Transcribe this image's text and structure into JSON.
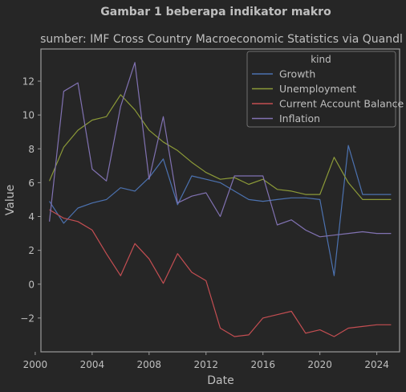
{
  "chart_data": {
    "type": "line",
    "suptitle": "Gambar 1 beberapa indikator makro",
    "title": "sumber: IMF Cross Country Macroeconomic Statistics via Quandl",
    "xlabel": "Date",
    "ylabel": "Value",
    "xlim": [
      2000.4,
      2025.6
    ],
    "ylim": [
      -4.0,
      13.9
    ],
    "xticks": [
      2000,
      2004,
      2008,
      2012,
      2016,
      2020,
      2024
    ],
    "yticks": [
      -2,
      0,
      2,
      4,
      6,
      8,
      10,
      12
    ],
    "ytick_labels": [
      "−2",
      "0",
      "2",
      "4",
      "6",
      "8",
      "10",
      "12"
    ],
    "grid": false,
    "legend": {
      "title": "kind",
      "position": "top-right"
    },
    "x": [
      2001,
      2002,
      2003,
      2004,
      2005,
      2006,
      2007,
      2008,
      2009,
      2010,
      2011,
      2012,
      2013,
      2014,
      2015,
      2016,
      2017,
      2018,
      2019,
      2020,
      2021,
      2022,
      2023,
      2024,
      2025
    ],
    "series": [
      {
        "name": "Growth",
        "color": "#4c72b0",
        "values": [
          4.9,
          3.6,
          4.5,
          4.8,
          5.0,
          5.7,
          5.5,
          6.3,
          7.4,
          4.7,
          6.4,
          6.2,
          6.0,
          5.5,
          5.0,
          4.9,
          5.0,
          5.1,
          5.1,
          5.0,
          0.5,
          8.2,
          5.3,
          5.3,
          5.3
        ]
      },
      {
        "name": "Unemployment",
        "color": "#8c9a38",
        "values": [
          6.1,
          8.1,
          9.1,
          9.7,
          9.9,
          11.2,
          10.3,
          9.1,
          8.4,
          7.9,
          7.2,
          6.6,
          6.2,
          6.3,
          5.9,
          6.2,
          5.6,
          5.5,
          5.3,
          5.3,
          7.5,
          6.0,
          5.0,
          5.0,
          5.0
        ]
      },
      {
        "name": "Current Account Balance",
        "color": "#c44e52",
        "values": [
          4.4,
          3.9,
          3.7,
          3.2,
          1.8,
          0.5,
          2.4,
          1.5,
          0.05,
          1.8,
          0.7,
          0.2,
          -2.6,
          -3.1,
          -3.0,
          -2.0,
          -1.8,
          -1.6,
          -2.9,
          -2.7,
          -3.1,
          -2.6,
          -2.5,
          -2.4,
          -2.4
        ]
      },
      {
        "name": "Inflation",
        "color": "#8172b2",
        "values": [
          3.7,
          11.4,
          11.9,
          6.8,
          6.1,
          10.5,
          13.1,
          6.2,
          9.9,
          4.8,
          5.2,
          5.4,
          4.0,
          6.4,
          6.4,
          6.4,
          3.5,
          3.8,
          3.2,
          2.8,
          2.9,
          3.0,
          3.1,
          3.0,
          3.0
        ]
      }
    ]
  }
}
